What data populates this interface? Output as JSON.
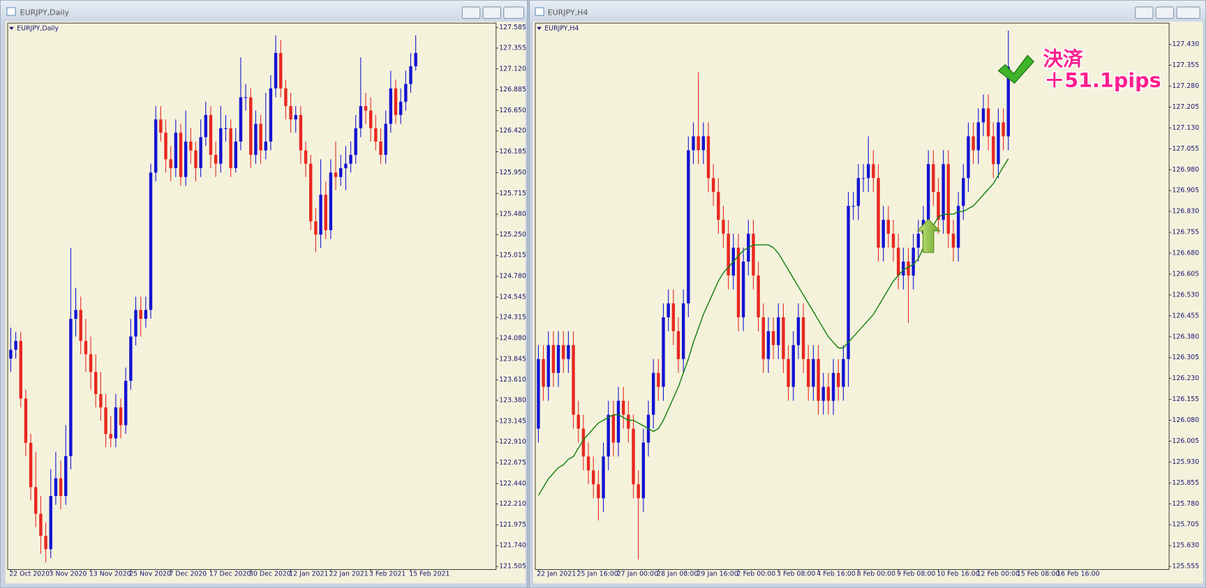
{
  "chart_data": [
    {
      "type": "candlestick",
      "title": "EURJPY,Daily",
      "up_color": "#1414d2",
      "down_color": "#e82820",
      "background": "#f5f2dc",
      "categories": [
        "22 Oct 2020",
        null,
        null,
        null,
        null,
        null,
        null,
        null,
        "3 Nov 2020",
        null,
        null,
        null,
        null,
        null,
        null,
        null,
        "13 Nov 2020",
        null,
        null,
        null,
        null,
        null,
        null,
        null,
        "25 Nov 2020",
        null,
        null,
        null,
        null,
        null,
        null,
        null,
        "7 Dec 2020",
        null,
        null,
        null,
        null,
        null,
        null,
        null,
        "17 Dec 2020",
        null,
        null,
        null,
        null,
        null,
        null,
        null,
        "30 Dec 2020",
        null,
        null,
        null,
        null,
        null,
        null,
        null,
        "12 Jan 2021",
        null,
        null,
        null,
        null,
        null,
        null,
        null,
        "22 Jan 2021",
        null,
        null,
        null,
        null,
        null,
        null,
        null,
        "3 Feb 2021",
        null,
        null,
        null,
        null,
        null,
        null,
        null,
        "15 Feb 2021",
        null
      ],
      "open": [
        123.85,
        123.95,
        124.05,
        123.4,
        122.9,
        122.4,
        122.1,
        121.85,
        121.7,
        122.3,
        122.5,
        122.3,
        122.75,
        124.3,
        124.4,
        124.05,
        123.9,
        123.7,
        123.45,
        123.3,
        123.0,
        122.95,
        123.3,
        123.1,
        123.6,
        124.1,
        124.4,
        124.3,
        124.4,
        125.95,
        126.55,
        126.4,
        126.1,
        126.0,
        126.4,
        125.9,
        126.3,
        126.2,
        126.0,
        126.35,
        126.6,
        126.15,
        126.05,
        126.45,
        126.45,
        126.0,
        126.3,
        126.8,
        126.8,
        126.15,
        126.5,
        126.2,
        126.3,
        126.9,
        127.3,
        126.9,
        126.7,
        126.55,
        126.6,
        126.2,
        126.05,
        125.4,
        125.25,
        125.7,
        125.3,
        125.95,
        125.9,
        126.0,
        126.05,
        126.15,
        126.45,
        126.7,
        126.65,
        126.45,
        126.3,
        126.15,
        126.5,
        126.9,
        126.6,
        126.75,
        126.95,
        127.15
      ],
      "high": [
        124.2,
        124.15,
        124.15,
        123.5,
        123.0,
        122.8,
        122.3,
        122.0,
        122.6,
        122.8,
        122.7,
        123.1,
        125.1,
        124.65,
        124.55,
        124.3,
        124.1,
        123.9,
        123.7,
        123.45,
        123.2,
        123.45,
        123.4,
        123.75,
        124.3,
        124.55,
        124.55,
        124.55,
        126.05,
        126.7,
        126.7,
        126.55,
        126.25,
        126.55,
        126.5,
        126.65,
        126.45,
        126.3,
        126.55,
        126.75,
        126.7,
        126.3,
        126.7,
        126.6,
        126.55,
        126.45,
        127.25,
        126.95,
        126.9,
        126.65,
        126.6,
        126.85,
        127.05,
        127.5,
        127.45,
        127.0,
        126.85,
        126.7,
        126.7,
        126.3,
        126.15,
        125.55,
        126.1,
        125.85,
        126.1,
        126.3,
        126.15,
        126.25,
        126.3,
        126.6,
        127.25,
        126.85,
        126.8,
        126.6,
        126.45,
        126.65,
        127.1,
        127.0,
        126.9,
        127.1,
        127.3,
        127.5
      ],
      "low": [
        123.7,
        123.85,
        123.3,
        122.75,
        122.25,
        121.95,
        121.65,
        121.55,
        121.6,
        122.2,
        122.15,
        122.2,
        122.6,
        124.1,
        123.9,
        123.7,
        123.5,
        123.3,
        123.15,
        122.85,
        122.85,
        122.85,
        122.95,
        123.0,
        123.5,
        124.0,
        124.1,
        124.2,
        124.3,
        125.85,
        126.3,
        125.95,
        125.85,
        125.9,
        125.8,
        125.8,
        126.05,
        125.85,
        125.9,
        126.25,
        126.0,
        125.9,
        125.95,
        126.3,
        125.9,
        125.95,
        126.2,
        126.65,
        126.0,
        126.05,
        126.05,
        126.1,
        126.2,
        126.8,
        126.8,
        126.55,
        126.4,
        126.4,
        126.05,
        125.9,
        125.3,
        125.05,
        125.1,
        125.2,
        125.2,
        125.75,
        125.8,
        125.75,
        125.95,
        126.05,
        126.35,
        126.5,
        126.3,
        126.2,
        126.05,
        126.05,
        126.4,
        126.5,
        126.5,
        126.65,
        126.85,
        127.1
      ],
      "close": [
        123.95,
        124.05,
        123.4,
        122.9,
        122.4,
        122.1,
        121.85,
        121.7,
        122.3,
        122.5,
        122.3,
        122.75,
        124.3,
        124.4,
        124.05,
        123.9,
        123.7,
        123.45,
        123.3,
        123.0,
        122.95,
        123.3,
        123.1,
        123.6,
        124.1,
        124.4,
        124.3,
        124.4,
        125.95,
        126.55,
        126.4,
        126.1,
        126.0,
        126.4,
        125.9,
        126.3,
        126.2,
        126.0,
        126.35,
        126.6,
        126.15,
        126.05,
        126.45,
        126.45,
        126.0,
        126.3,
        126.8,
        126.8,
        126.15,
        126.5,
        126.2,
        126.3,
        126.9,
        127.3,
        126.9,
        126.7,
        126.55,
        126.6,
        126.2,
        126.05,
        125.4,
        125.25,
        125.7,
        125.3,
        125.95,
        125.9,
        126.0,
        126.05,
        126.15,
        126.45,
        126.7,
        126.65,
        126.45,
        126.3,
        126.15,
        126.5,
        126.9,
        126.6,
        126.75,
        126.95,
        127.15,
        127.3
      ],
      "ylim": [
        121.505,
        127.585
      ],
      "yticks": [
        127.585,
        127.355,
        {
          "value": 127.12,
          "label": "127.120"
        },
        126.885,
        {
          "value": 126.65,
          "label": "126.650"
        },
        {
          "value": 126.42,
          "label": "126.420"
        },
        126.185,
        {
          "value": 125.95,
          "label": "125.950"
        },
        125.715,
        {
          "value": 125.48,
          "label": "125.480"
        },
        {
          "value": 125.25,
          "label": "125.250"
        },
        125.015,
        {
          "value": 124.78,
          "label": "124.780"
        },
        124.545,
        124.315,
        {
          "value": 124.08,
          "label": "124.080"
        },
        123.845,
        {
          "value": 123.61,
          "label": "123.610"
        },
        {
          "value": 123.38,
          "label": "123.380"
        },
        123.145,
        {
          "value": 122.91,
          "label": "122.910"
        },
        122.675,
        {
          "value": 122.44,
          "label": "122.440"
        },
        {
          "value": 122.21,
          "label": "122.210"
        },
        121.975,
        {
          "value": 121.74,
          "label": "121.740"
        },
        121.505
      ]
    },
    {
      "type": "candlestick",
      "title": "EURJPY,H4",
      "up_color": "#1414d2",
      "down_color": "#e82820",
      "background": "#f5f2dc",
      "categories": [
        "22 Jan 2021",
        null,
        null,
        null,
        null,
        null,
        null,
        null,
        "25 Jan 16:00",
        null,
        null,
        null,
        null,
        null,
        null,
        null,
        "27 Jan 00:00",
        null,
        null,
        null,
        null,
        null,
        null,
        null,
        "28 Jan 08:00",
        null,
        null,
        null,
        null,
        null,
        null,
        null,
        "29 Jan 16:00",
        null,
        null,
        null,
        null,
        null,
        null,
        null,
        "2 Feb 00:00",
        null,
        null,
        null,
        null,
        null,
        null,
        null,
        "3 Feb 08:00",
        null,
        null,
        null,
        null,
        null,
        null,
        null,
        "4 Feb 16:00",
        null,
        null,
        null,
        null,
        null,
        null,
        null,
        "8 Feb 00:00",
        null,
        null,
        null,
        null,
        null,
        null,
        null,
        "9 Feb 08:00",
        null,
        null,
        null,
        null,
        null,
        null,
        null,
        "10 Feb 16:00",
        null,
        null,
        null,
        null,
        null,
        null,
        null,
        "12 Feb 00:00",
        null,
        null,
        null,
        null,
        null,
        null,
        null,
        "15 Feb 08:00",
        null,
        null,
        null,
        null,
        null,
        null,
        null,
        "16 Feb 16:00"
      ],
      "open": [
        126.05,
        126.3,
        126.2,
        126.35,
        126.25,
        126.35,
        126.3,
        126.35,
        126.1,
        126.05,
        125.95,
        125.9,
        125.85,
        125.8,
        125.95,
        126.1,
        126.0,
        126.15,
        126.1,
        126.05,
        125.85,
        125.8,
        126.0,
        126.1,
        126.25,
        126.2,
        126.45,
        126.5,
        126.4,
        126.3,
        126.5,
        127.05,
        127.1,
        127.05,
        127.1,
        126.95,
        126.9,
        126.8,
        126.75,
        126.6,
        126.7,
        126.45,
        126.65,
        126.75,
        126.6,
        126.45,
        126.3,
        126.4,
        126.35,
        126.45,
        126.3,
        126.2,
        126.35,
        126.45,
        126.3,
        126.2,
        126.3,
        126.15,
        126.2,
        126.15,
        126.25,
        126.2,
        126.3,
        126.85,
        126.85,
        126.95,
        126.95,
        127.0,
        126.95,
        126.7,
        126.8,
        126.75,
        126.7,
        126.6,
        126.65,
        126.6,
        126.7,
        126.75,
        126.8,
        127.0,
        126.9,
        126.8,
        127.0,
        126.75,
        126.7,
        126.85,
        126.95,
        127.1,
        127.05,
        127.15,
        127.2,
        127.1,
        127.0,
        127.15,
        127.1,
        null,
        null,
        null,
        null,
        null,
        null,
        null,
        null,
        null,
        null
      ],
      "high": [
        126.35,
        126.35,
        126.4,
        126.4,
        126.4,
        126.4,
        126.4,
        126.4,
        126.15,
        126.1,
        126.0,
        125.95,
        125.9,
        126.0,
        126.15,
        126.15,
        126.2,
        126.2,
        126.15,
        126.1,
        125.9,
        126.05,
        126.15,
        126.3,
        126.3,
        126.5,
        126.55,
        126.55,
        126.45,
        126.55,
        127.1,
        127.15,
        127.33,
        127.15,
        127.15,
        127.0,
        126.95,
        126.85,
        126.8,
        126.75,
        126.75,
        126.7,
        126.8,
        126.8,
        126.65,
        126.5,
        126.45,
        126.45,
        126.5,
        126.5,
        126.35,
        126.4,
        126.5,
        126.5,
        126.35,
        126.35,
        126.35,
        126.25,
        126.25,
        126.3,
        126.3,
        126.35,
        126.9,
        126.9,
        127.0,
        127.0,
        127.1,
        127.05,
        127.0,
        126.85,
        126.85,
        126.8,
        126.75,
        126.7,
        126.7,
        126.75,
        126.8,
        126.85,
        127.05,
        127.05,
        126.95,
        127.05,
        127.05,
        126.8,
        126.9,
        127.0,
        127.15,
        127.15,
        127.2,
        127.25,
        127.25,
        127.15,
        127.2,
        127.2,
        127.48,
        null,
        null,
        null,
        null,
        null,
        null,
        null,
        null,
        null,
        null
      ],
      "low": [
        126.0,
        126.15,
        126.15,
        126.2,
        126.2,
        126.25,
        126.25,
        126.05,
        126.0,
        125.9,
        125.85,
        125.8,
        125.72,
        125.75,
        125.9,
        125.95,
        125.95,
        126.05,
        126.0,
        125.8,
        125.58,
        125.75,
        125.95,
        126.05,
        126.15,
        126.15,
        126.4,
        126.35,
        126.25,
        126.25,
        126.45,
        127.0,
        127.0,
        127.0,
        126.9,
        126.85,
        126.75,
        126.7,
        126.55,
        126.55,
        126.4,
        126.4,
        126.6,
        126.55,
        126.4,
        126.25,
        126.25,
        126.3,
        126.3,
        126.25,
        126.15,
        126.15,
        126.3,
        126.25,
        126.15,
        126.15,
        126.1,
        126.1,
        126.1,
        126.1,
        126.15,
        126.15,
        126.2,
        126.8,
        126.8,
        126.9,
        126.9,
        126.9,
        126.65,
        126.65,
        126.7,
        126.65,
        126.55,
        126.55,
        126.43,
        126.55,
        126.65,
        126.7,
        126.75,
        126.85,
        126.75,
        126.75,
        126.7,
        126.65,
        126.65,
        126.8,
        126.9,
        127.0,
        127.0,
        127.1,
        127.05,
        126.95,
        126.95,
        127.05,
        127.05,
        null,
        null,
        null,
        null,
        null,
        null,
        null,
        null,
        null,
        null
      ],
      "close": [
        126.3,
        126.2,
        126.35,
        126.25,
        126.35,
        126.3,
        126.35,
        126.1,
        126.05,
        125.95,
        125.9,
        125.85,
        125.8,
        125.95,
        126.1,
        126.0,
        126.15,
        126.1,
        126.05,
        125.85,
        125.8,
        126.0,
        126.1,
        126.25,
        126.2,
        126.45,
        126.5,
        126.4,
        126.3,
        126.5,
        127.05,
        127.1,
        127.05,
        127.1,
        126.95,
        126.9,
        126.8,
        126.75,
        126.6,
        126.7,
        126.45,
        126.65,
        126.75,
        126.6,
        126.45,
        126.3,
        126.4,
        126.35,
        126.45,
        126.3,
        126.2,
        126.35,
        126.45,
        126.3,
        126.2,
        126.3,
        126.15,
        126.2,
        126.15,
        126.25,
        126.2,
        126.3,
        126.85,
        126.85,
        126.95,
        126.95,
        127.0,
        126.95,
        126.7,
        126.8,
        126.75,
        126.7,
        126.6,
        126.65,
        126.6,
        126.7,
        126.75,
        126.8,
        127.0,
        126.9,
        126.8,
        127.0,
        126.75,
        126.7,
        126.85,
        126.95,
        127.1,
        127.05,
        127.15,
        127.2,
        127.1,
        127.0,
        127.15,
        127.1,
        127.35,
        null,
        null,
        null,
        null,
        null,
        null,
        null,
        null,
        null,
        null
      ],
      "lines": [
        {
          "color": "#108010",
          "values": [
            125.81,
            125.84,
            125.87,
            125.89,
            125.91,
            125.92,
            125.94,
            125.95,
            125.98,
            126.01,
            126.03,
            126.05,
            126.07,
            126.08,
            126.09,
            126.1,
            126.1,
            126.09,
            126.08,
            126.08,
            126.07,
            126.06,
            126.05,
            126.04,
            126.05,
            126.08,
            126.12,
            126.16,
            126.2,
            126.25,
            126.3,
            126.36,
            126.41,
            126.46,
            126.5,
            126.54,
            126.58,
            126.61,
            126.63,
            126.65,
            126.67,
            126.69,
            126.7,
            126.71,
            126.71,
            126.71,
            126.71,
            126.7,
            126.68,
            126.65,
            126.62,
            126.59,
            126.56,
            126.53,
            126.5,
            126.47,
            126.44,
            126.41,
            126.38,
            126.36,
            126.34,
            126.34,
            126.36,
            126.38,
            126.4,
            126.42,
            126.44,
            126.46,
            126.49,
            126.52,
            126.55,
            126.58,
            126.6,
            126.62,
            126.63,
            126.64,
            126.66,
            126.7,
            126.74,
            126.78,
            126.81,
            126.82,
            126.82,
            126.82,
            126.83,
            126.83,
            126.84,
            126.85,
            126.87,
            126.89,
            126.91,
            126.93,
            126.96,
            126.99,
            127.02,
            null,
            null,
            null,
            null,
            null,
            null,
            null,
            null,
            null,
            null
          ]
        }
      ],
      "annotations": [
        "決済",
        "＋51.1pips"
      ],
      "annotation_color": "#ff1f8e",
      "ylim": [
        125.555,
        127.49
      ],
      "yticks": [
        {
          "value": 127.43,
          "label": "127.430"
        },
        127.355,
        {
          "value": 127.28,
          "label": "127.280"
        },
        127.205,
        {
          "value": 127.13,
          "label": "127.130"
        },
        127.055,
        {
          "value": 126.98,
          "label": "126.980"
        },
        126.905,
        {
          "value": 126.83,
          "label": "126.830"
        },
        126.755,
        {
          "value": 126.68,
          "label": "126.680"
        },
        126.605,
        {
          "value": 126.53,
          "label": "126.530"
        },
        126.455,
        {
          "value": 126.38,
          "label": "126.380"
        },
        126.305,
        {
          "value": 126.23,
          "label": "126.230"
        },
        126.155,
        {
          "value": 126.08,
          "label": "126.080"
        },
        126.005,
        {
          "value": 125.93,
          "label": "125.930"
        },
        125.855,
        {
          "value": 125.78,
          "label": "125.780"
        },
        125.705,
        {
          "value": 125.63,
          "label": "125.630"
        },
        125.555
      ]
    }
  ]
}
